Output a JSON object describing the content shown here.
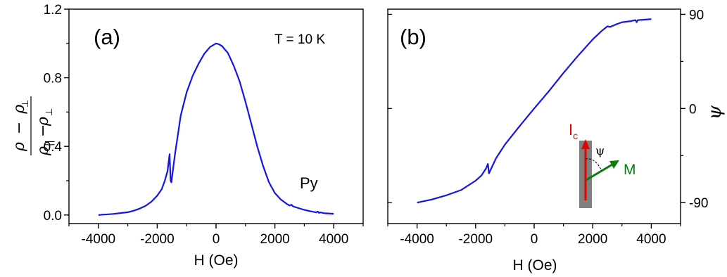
{
  "chart_data": [
    {
      "type": "line",
      "panel_label": "(a)",
      "annotation": "T = 10 K",
      "series_label": "Py",
      "xlabel": "H (Oe)",
      "ylabel": {
        "num_rho": "ρ",
        "minus": "−",
        "num_perp": "ρ",
        "den_par": "ρ",
        "den_perp": "ρ"
      },
      "xlim": [
        -5000,
        5000
      ],
      "ylim": [
        -0.05,
        1.2
      ],
      "xticks": [
        -4000,
        -2000,
        0,
        2000,
        4000
      ],
      "xtick_labels": [
        "-4000",
        "-2000",
        "0",
        "2000",
        "4000"
      ],
      "yticks": [
        0.0,
        0.4,
        0.8,
        1.2
      ],
      "ytick_labels": [
        "0.0",
        "0.4",
        "0.8",
        "1.2"
      ],
      "color": "#1515e6",
      "x": [
        -4000,
        -3500,
        -3000,
        -2800,
        -2600,
        -2400,
        -2200,
        -2000,
        -1850,
        -1750,
        -1650,
        -1580,
        -1545,
        -1520,
        -1400,
        -1200,
        -1000,
        -800,
        -600,
        -400,
        -200,
        0,
        100,
        200,
        400,
        600,
        800,
        1000,
        1200,
        1400,
        1600,
        1800,
        2000,
        2200,
        2400,
        2500,
        2560,
        2620,
        2800,
        3000,
        3200,
        3400,
        3460,
        3500,
        3540,
        3700,
        4000
      ],
      "y": [
        0.0,
        0.006,
        0.016,
        0.025,
        0.037,
        0.053,
        0.077,
        0.113,
        0.15,
        0.195,
        0.255,
        0.355,
        0.2,
        0.19,
        0.35,
        0.58,
        0.715,
        0.81,
        0.88,
        0.94,
        0.98,
        1.0,
        0.995,
        0.985,
        0.945,
        0.87,
        0.78,
        0.66,
        0.53,
        0.4,
        0.285,
        0.19,
        0.128,
        0.09,
        0.065,
        0.055,
        0.06,
        0.05,
        0.04,
        0.03,
        0.022,
        0.015,
        0.02,
        0.012,
        0.015,
        0.01,
        0.007
      ]
    },
    {
      "type": "line",
      "panel_label": "(b)",
      "xlabel": "H (Oe)",
      "ylabel": "ψ",
      "xlim": [
        -5000,
        5000
      ],
      "ylim": [
        -110,
        95
      ],
      "xticks": [
        -4000,
        -2000,
        0,
        2000,
        4000
      ],
      "xtick_labels": [
        "-4000",
        "-2000",
        "0",
        "2000",
        "4000"
      ],
      "yticks": [
        -90,
        0,
        90
      ],
      "ytick_labels": [
        "-90",
        "0",
        "90"
      ],
      "color": "#1515e6",
      "x": [
        -4000,
        -3500,
        -3000,
        -2500,
        -2000,
        -1800,
        -1650,
        -1580,
        -1545,
        -1300,
        -1000,
        -500,
        0,
        500,
        1000,
        1500,
        2000,
        2300,
        2500,
        2600,
        2800,
        3000,
        3300,
        3460,
        3500,
        3540,
        3800,
        4000
      ],
      "y": [
        -90,
        -87,
        -83,
        -78,
        -69,
        -64,
        -57.5,
        -53,
        -62,
        -47.5,
        -34.5,
        -17,
        0,
        16.5,
        34,
        50.5,
        66,
        74,
        78.5,
        78,
        80.5,
        82.5,
        83.5,
        84.5,
        82.5,
        84.5,
        85,
        85.5
      ],
      "inset": {
        "current_label": "I",
        "current_subscript": "c",
        "angle_label": "ψ",
        "magnetization_label": "M",
        "current_color": "#e60000",
        "magnetization_color": "#0a7d0a",
        "bar_color": "#7f7f7f"
      }
    }
  ]
}
